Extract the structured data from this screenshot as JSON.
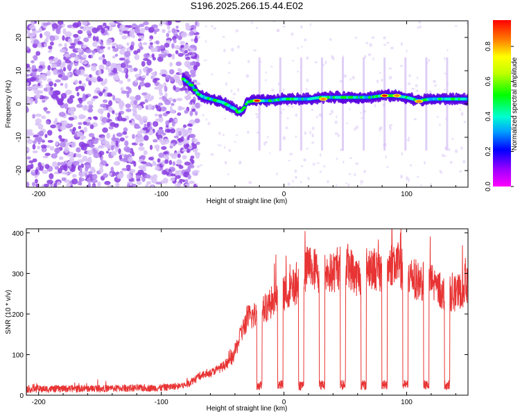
{
  "figure": {
    "title": "S196.2025.266.15.44.E02"
  },
  "colors": {
    "snr_line": "#e83434",
    "scatter_background": "#a060e0",
    "colormap": [
      "#ff00ff",
      "#8000ff",
      "#0000ff",
      "#00a0ff",
      "#00ffc0",
      "#00ff00",
      "#c0ff00",
      "#ffff00",
      "#ff8000",
      "#ff0000"
    ]
  },
  "chart_data": [
    {
      "type": "heatmap",
      "name": "spectrogram",
      "xlabel": "Height of straight line (km)",
      "ylabel": "Frequency (Hz)",
      "xlim": [
        -210,
        150
      ],
      "ylim": [
        -25,
        25
      ],
      "x_ticks": [
        -200,
        -100,
        0,
        100
      ],
      "x_tick_labels": [
        "-200",
        "-100",
        "0",
        "100"
      ],
      "y_ticks": [
        -20,
        -10,
        0,
        10,
        20
      ],
      "y_tick_labels": [
        "-20",
        "-10",
        "0",
        "10",
        "20"
      ],
      "noise_region_km": [
        -210,
        -75
      ],
      "ridge": {
        "x": [
          -82,
          -75,
          -70,
          -65,
          -60,
          -55,
          -50,
          -45,
          -40,
          -37,
          -33,
          -30,
          -25,
          -20,
          -10,
          0,
          10,
          20,
          30,
          40,
          50,
          60,
          70,
          80,
          90,
          100,
          110,
          120,
          130,
          140,
          150
        ],
        "y": [
          7.5,
          5.5,
          3.0,
          2.0,
          1.5,
          1.0,
          0.5,
          -0.5,
          -1.5,
          -2.5,
          -1.5,
          0.5,
          1.0,
          1.0,
          1.0,
          1.5,
          1.5,
          1.5,
          2.0,
          2.0,
          2.0,
          2.0,
          2.0,
          2.5,
          2.5,
          2.0,
          1.0,
          1.5,
          1.5,
          1.5,
          1.5
        ]
      },
      "peaks": [
        {
          "x": -22,
          "y": 1.0,
          "amp": 0.95
        },
        {
          "x": 32,
          "y": 1.5,
          "amp": 0.9
        },
        {
          "x": 82,
          "y": 2.5,
          "amp": 0.95
        },
        {
          "x": 92,
          "y": 2.5,
          "amp": 0.9
        },
        {
          "x": 110,
          "y": 0.8,
          "amp": 0.9
        }
      ],
      "colorbar": {
        "label": "Normalized spectral amplitude",
        "range": [
          0.0,
          0.95
        ],
        "ticks": [
          0.0,
          0.2,
          0.4,
          0.6,
          0.8
        ],
        "tick_labels": [
          "0.0",
          "0.2",
          "0.4",
          "0.6",
          "0.8"
        ]
      }
    },
    {
      "type": "line",
      "name": "snr",
      "xlabel": "Height of straight line (km)",
      "ylabel": "SNR (10 * v/v)",
      "xlim": [
        -210,
        150
      ],
      "ylim": [
        0,
        410
      ],
      "x_ticks": [
        -200,
        -100,
        0,
        100
      ],
      "x_tick_labels": [
        "-200",
        "-100",
        "0",
        "100"
      ],
      "y_ticks": [
        0,
        100,
        200,
        300,
        400
      ],
      "y_tick_labels": [
        "0",
        "100",
        "200",
        "300",
        "400"
      ],
      "trend": {
        "x": [
          -210,
          -100,
          -80,
          -70,
          -60,
          -50,
          -42,
          -35,
          -30,
          -20,
          -10,
          0,
          10,
          20,
          30,
          40,
          50,
          60,
          70,
          80,
          90,
          100,
          110,
          120,
          130,
          140,
          150
        ],
        "y": [
          15,
          18,
          25,
          45,
          55,
          70,
          90,
          150,
          190,
          200,
          230,
          250,
          270,
          320,
          300,
          300,
          330,
          290,
          320,
          300,
          330,
          300,
          280,
          280,
          250,
          250,
          270
        ]
      },
      "dips_x": [
        -20,
        -3,
        14,
        31,
        48,
        65,
        82,
        99,
        116,
        133
      ],
      "dip_level": 25,
      "max_peak": {
        "x": 88,
        "y": 410
      }
    }
  ]
}
